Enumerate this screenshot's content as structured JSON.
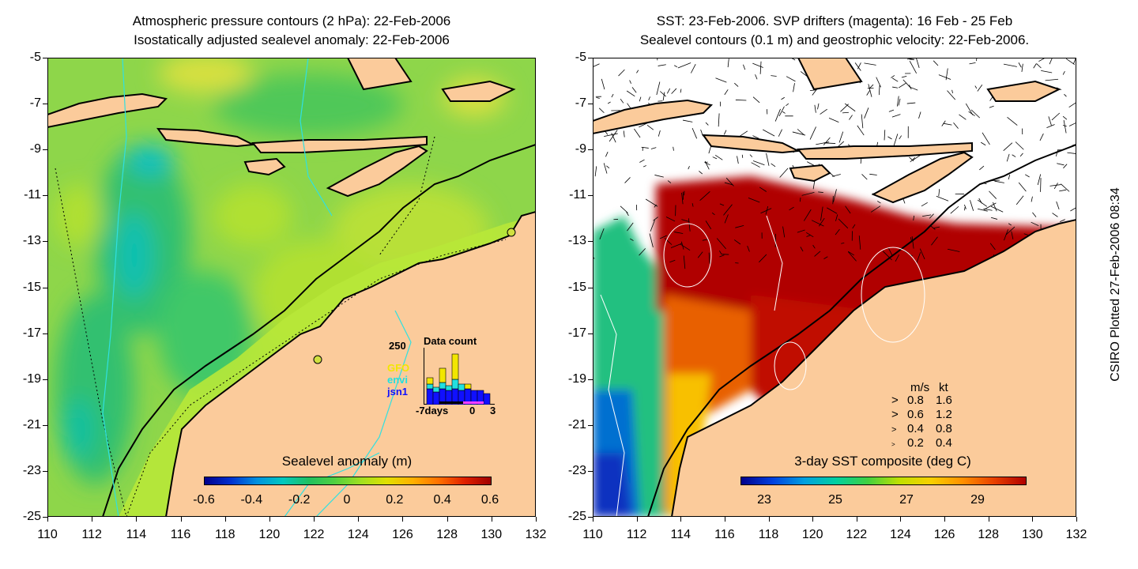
{
  "left_panel": {
    "title_line1": "Atmospheric pressure contours (2 hPa): 22-Feb-2006",
    "title_line2": "Isostatically adjusted sealevel anomaly: 22-Feb-2006",
    "colorbar": {
      "label": "Sealevel anomaly (m)",
      "ticks": [
        "-0.6",
        "-0.4",
        "-0.2",
        "0",
        "0.2",
        "0.4",
        "0.6"
      ],
      "colors": [
        "#00008c",
        "#0030d0",
        "#0090e0",
        "#00c8c0",
        "#20c060",
        "#50d040",
        "#a0e020",
        "#e0e000",
        "#ffb000",
        "#ff7000",
        "#e02000",
        "#a00000"
      ]
    },
    "inset": {
      "title": "Data count",
      "ymax_label": "250",
      "legend": [
        {
          "name": "GFO",
          "color": "#f2e600"
        },
        {
          "name": "envi",
          "color": "#22e0e0"
        },
        {
          "name": "jsn1",
          "color": "#1010ff"
        }
      ],
      "x_labels": [
        "-7days",
        "0",
        "3"
      ]
    }
  },
  "right_panel": {
    "title_line1": "SST: 23-Feb-2006. SVP drifters (magenta): 16 Feb - 25 Feb",
    "title_line2": "Sealevel contours (0.1 m) and geostrophic velocity: 22-Feb-2006.",
    "colorbar": {
      "label": "3-day SST composite (deg C)",
      "ticks": [
        "23",
        "25",
        "27",
        "29"
      ],
      "colors": [
        "#00008c",
        "#0040e0",
        "#00a0e0",
        "#00d0a0",
        "#40d040",
        "#c0e000",
        "#f8d000",
        "#ff9000",
        "#e84000",
        "#b00000"
      ]
    },
    "velocity_legend": {
      "header": [
        "m/s",
        "kt"
      ],
      "rows": [
        [
          "0.8",
          "1.6"
        ],
        [
          "0.6",
          "1.2"
        ],
        [
          "0.4",
          "0.8"
        ],
        [
          "0.2",
          "0.4"
        ]
      ]
    }
  },
  "axes": {
    "x_ticks": [
      "110",
      "112",
      "114",
      "116",
      "118",
      "120",
      "122",
      "124",
      "126",
      "128",
      "130",
      "132"
    ],
    "y_ticks": [
      "-5",
      "-7",
      "-9",
      "-11",
      "-13",
      "-15",
      "-17",
      "-19",
      "-21",
      "-23",
      "-25"
    ],
    "x_range": [
      110,
      132
    ],
    "y_range": [
      -25,
      -5
    ]
  },
  "side_label": "CSIRO Plotted 27-Feb-2006 08:34",
  "colors": {
    "land": "#fbcb9b",
    "ocean_sla": "#8ed64a",
    "sst_warm": "#b00000",
    "contour_cyan": "#30e0e0"
  }
}
